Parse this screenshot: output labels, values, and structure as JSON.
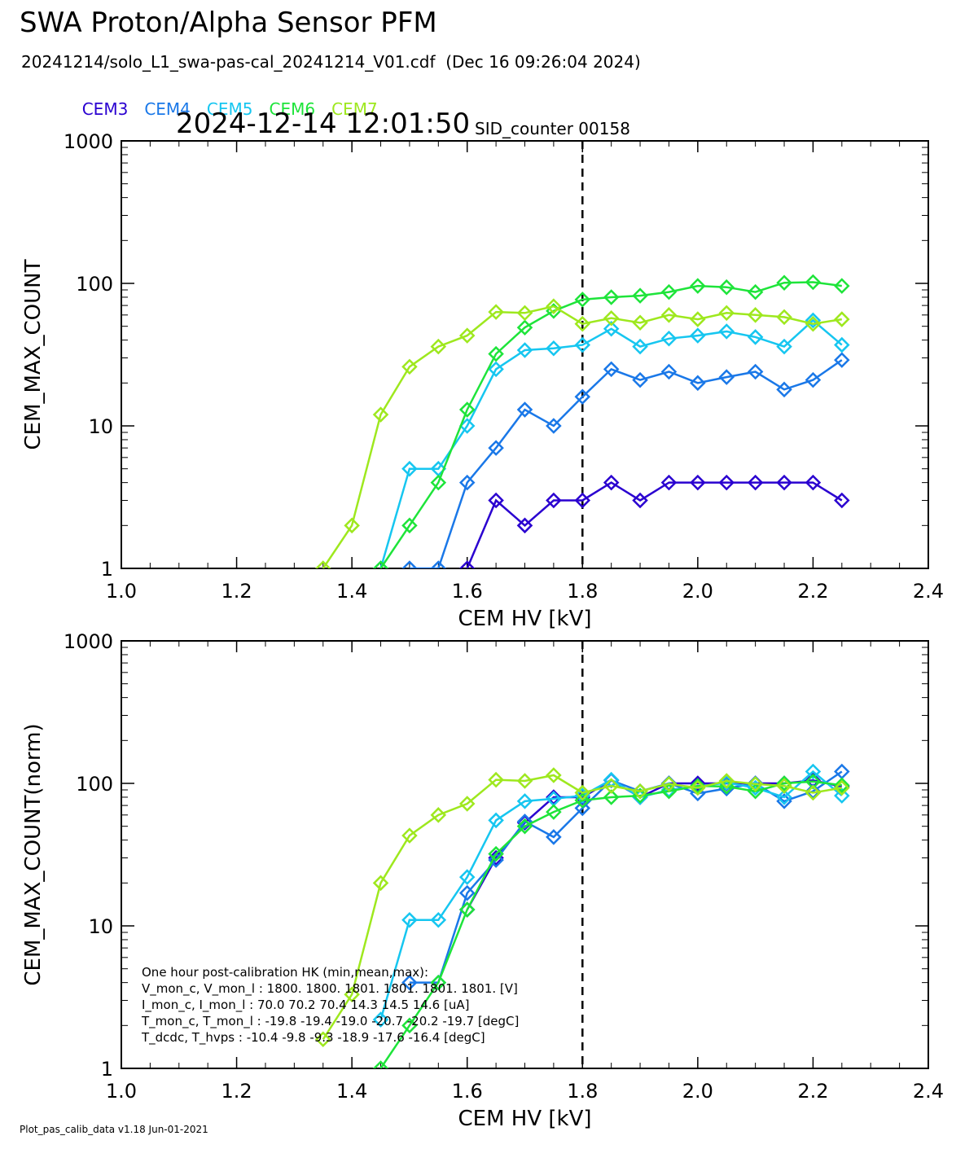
{
  "header": {
    "title": "SWA Proton/Alpha Sensor PFM",
    "subtitle": "20241214/solo_L1_swa-pas-cal_20241214_V01.cdf  (Dec 16 09:26:04 2024)",
    "timestamp": "2024-12-14 12:01:50",
    "sid_counter": "SID_counter 00158"
  },
  "legend": [
    {
      "label": "CEM3",
      "color": "#2a00d0"
    },
    {
      "label": "CEM4",
      "color": "#1a78e8"
    },
    {
      "label": "CEM5",
      "color": "#16c6f0"
    },
    {
      "label": "CEM6",
      "color": "#1ee43a"
    },
    {
      "label": "CEM7",
      "color": "#9ee81e"
    }
  ],
  "footer": "Plot_pas_calib_data v1.18 Jun-01-2021",
  "hk_text": {
    "lines": [
      "One hour post-calibration HK (min,mean,max):",
      "V_mon_c, V_mon_l :   1800.  1800.  1801.     1801.  1801.  1801. [V]",
      "I_mon_c, I_mon_l :     70.0   70.2   70.4       14.3   14.5   14.6  [uA]",
      "T_mon_c, T_mon_l :   -19.8  -19.4  -19.0      -20.7  -20.2  -19.7  [degC]",
      "T_dcdc,    T_hvps :     -10.4   -9.8   -9.3       -18.9  -17.6  -16.4  [degC]"
    ]
  },
  "chart_data": [
    {
      "type": "line",
      "xlabel": "CEM HV [kV]",
      "ylabel": "CEM_MAX_COUNT",
      "xlim": [
        1.0,
        2.4
      ],
      "ylim": [
        1,
        1000
      ],
      "yscale": "log",
      "xticks": [
        "1.0",
        "1.2",
        "1.4",
        "1.6",
        "1.8",
        "2.0",
        "2.2",
        "2.4"
      ],
      "yticks": [
        "1",
        "10",
        "100",
        "1000"
      ],
      "vline": 1.8,
      "marker": "diamond",
      "series": [
        {
          "name": "CEM3",
          "color": "#2a00d0",
          "points": [
            [
              1.6,
              1
            ],
            [
              1.65,
              3
            ],
            [
              1.7,
              2
            ],
            [
              1.75,
              3
            ],
            [
              1.8,
              3
            ],
            [
              1.85,
              4
            ],
            [
              1.9,
              3
            ],
            [
              1.95,
              4
            ],
            [
              2.0,
              4
            ],
            [
              2.05,
              4
            ],
            [
              2.1,
              4
            ],
            [
              2.15,
              4
            ],
            [
              2.2,
              4
            ],
            [
              2.25,
              3
            ]
          ]
        },
        {
          "name": "CEM4",
          "color": "#1a78e8",
          "points": [
            [
              1.5,
              1
            ],
            [
              1.55,
              1
            ],
            [
              1.6,
              4
            ],
            [
              1.65,
              7
            ],
            [
              1.7,
              13
            ],
            [
              1.75,
              10
            ],
            [
              1.8,
              16
            ],
            [
              1.85,
              25
            ],
            [
              1.9,
              21
            ],
            [
              1.95,
              24
            ],
            [
              2.0,
              20
            ],
            [
              2.05,
              22
            ],
            [
              2.1,
              24
            ],
            [
              2.15,
              18
            ],
            [
              2.2,
              21
            ],
            [
              2.25,
              29
            ]
          ]
        },
        {
          "name": "CEM5",
          "color": "#16c6f0",
          "points": [
            [
              1.45,
              1
            ],
            [
              1.5,
              5
            ],
            [
              1.55,
              5
            ],
            [
              1.6,
              10
            ],
            [
              1.65,
              25
            ],
            [
              1.7,
              34
            ],
            [
              1.75,
              35
            ],
            [
              1.8,
              37
            ],
            [
              1.85,
              48
            ],
            [
              1.9,
              36
            ],
            [
              1.95,
              41
            ],
            [
              2.0,
              43
            ],
            [
              2.05,
              46
            ],
            [
              2.1,
              42
            ],
            [
              2.15,
              36
            ],
            [
              2.2,
              55
            ],
            [
              2.25,
              37
            ]
          ]
        },
        {
          "name": "CEM6",
          "color": "#1ee43a",
          "points": [
            [
              1.45,
              1
            ],
            [
              1.5,
              2
            ],
            [
              1.55,
              4
            ],
            [
              1.6,
              13
            ],
            [
              1.65,
              32
            ],
            [
              1.7,
              49
            ],
            [
              1.75,
              64
            ],
            [
              1.8,
              77
            ],
            [
              1.85,
              80
            ],
            [
              1.9,
              82
            ],
            [
              1.95,
              87
            ],
            [
              2.0,
              96
            ],
            [
              2.05,
              94
            ],
            [
              2.1,
              87
            ],
            [
              2.15,
              101
            ],
            [
              2.2,
              102
            ],
            [
              2.25,
              96
            ]
          ]
        },
        {
          "name": "CEM7",
          "color": "#9ee81e",
          "points": [
            [
              1.35,
              1
            ],
            [
              1.4,
              2
            ],
            [
              1.45,
              12
            ],
            [
              1.5,
              26
            ],
            [
              1.55,
              36
            ],
            [
              1.6,
              43
            ],
            [
              1.65,
              63
            ],
            [
              1.7,
              62
            ],
            [
              1.75,
              69
            ],
            [
              1.8,
              52
            ],
            [
              1.85,
              57
            ],
            [
              1.9,
              53
            ],
            [
              1.95,
              60
            ],
            [
              2.0,
              56
            ],
            [
              2.05,
              62
            ],
            [
              2.1,
              60
            ],
            [
              2.15,
              58
            ],
            [
              2.2,
              52
            ],
            [
              2.25,
              56
            ]
          ]
        }
      ]
    },
    {
      "type": "line",
      "xlabel": "CEM HV [kV]",
      "ylabel": "CEM_MAX_COUNT(norm)",
      "xlim": [
        1.0,
        2.4
      ],
      "ylim": [
        1,
        1000
      ],
      "yscale": "log",
      "xticks": [
        "1.0",
        "1.2",
        "1.4",
        "1.6",
        "1.8",
        "2.0",
        "2.2",
        "2.4"
      ],
      "yticks": [
        "1",
        "10",
        "100",
        "1000"
      ],
      "vline": 1.8,
      "marker": "diamond",
      "series": [
        {
          "name": "CEM3",
          "color": "#2a00d0",
          "points": [
            [
              1.6,
              13
            ],
            [
              1.65,
              30
            ],
            [
              1.7,
              53
            ],
            [
              1.75,
              80
            ],
            [
              1.8,
              80
            ],
            [
              1.85,
              105
            ],
            [
              1.9,
              80
            ],
            [
              1.95,
              100
            ],
            [
              2.0,
              100
            ],
            [
              2.05,
              100
            ],
            [
              2.1,
              100
            ],
            [
              2.15,
              100
            ],
            [
              2.2,
              105
            ],
            [
              2.25,
              95
            ]
          ]
        },
        {
          "name": "CEM4",
          "color": "#1a78e8",
          "points": [
            [
              1.5,
              4
            ],
            [
              1.55,
              4
            ],
            [
              1.6,
              17
            ],
            [
              1.65,
              29
            ],
            [
              1.7,
              54
            ],
            [
              1.75,
              42
            ],
            [
              1.8,
              67
            ],
            [
              1.85,
              105
            ],
            [
              1.9,
              88
            ],
            [
              1.95,
              100
            ],
            [
              2.0,
              85
            ],
            [
              2.05,
              92
            ],
            [
              2.1,
              100
            ],
            [
              2.15,
              75
            ],
            [
              2.2,
              88
            ],
            [
              2.25,
              121
            ]
          ]
        },
        {
          "name": "CEM5",
          "color": "#16c6f0",
          "points": [
            [
              1.45,
              2.2
            ],
            [
              1.5,
              11
            ],
            [
              1.55,
              11
            ],
            [
              1.6,
              22
            ],
            [
              1.65,
              55
            ],
            [
              1.7,
              75
            ],
            [
              1.75,
              78
            ],
            [
              1.8,
              82
            ],
            [
              1.85,
              106
            ],
            [
              1.9,
              80
            ],
            [
              1.95,
              90
            ],
            [
              2.0,
              95
            ],
            [
              2.05,
              101
            ],
            [
              2.1,
              93
            ],
            [
              2.15,
              80
            ],
            [
              2.2,
              121
            ],
            [
              2.25,
              82
            ]
          ]
        },
        {
          "name": "CEM6",
          "color": "#1ee43a",
          "points": [
            [
              1.45,
              1
            ],
            [
              1.5,
              2
            ],
            [
              1.55,
              4
            ],
            [
              1.6,
              13
            ],
            [
              1.65,
              32
            ],
            [
              1.7,
              50
            ],
            [
              1.75,
              63
            ],
            [
              1.8,
              76
            ],
            [
              1.85,
              80
            ],
            [
              1.9,
              82
            ],
            [
              1.95,
              88
            ],
            [
              2.0,
              96
            ],
            [
              2.05,
              95
            ],
            [
              2.1,
              88
            ],
            [
              2.15,
              100
            ],
            [
              2.2,
              103
            ],
            [
              2.25,
              97
            ]
          ]
        },
        {
          "name": "CEM7",
          "color": "#9ee81e",
          "points": [
            [
              1.35,
              1.6
            ],
            [
              1.4,
              3.3
            ],
            [
              1.45,
              20
            ],
            [
              1.5,
              43
            ],
            [
              1.55,
              60
            ],
            [
              1.6,
              72
            ],
            [
              1.65,
              106
            ],
            [
              1.7,
              104
            ],
            [
              1.75,
              114
            ],
            [
              1.8,
              86
            ],
            [
              1.85,
              96
            ],
            [
              1.9,
              88
            ],
            [
              1.95,
              99
            ],
            [
              2.0,
              93
            ],
            [
              2.05,
              104
            ],
            [
              2.1,
              99
            ],
            [
              2.15,
              96
            ],
            [
              2.2,
              86
            ],
            [
              2.25,
              93
            ]
          ]
        }
      ]
    }
  ]
}
